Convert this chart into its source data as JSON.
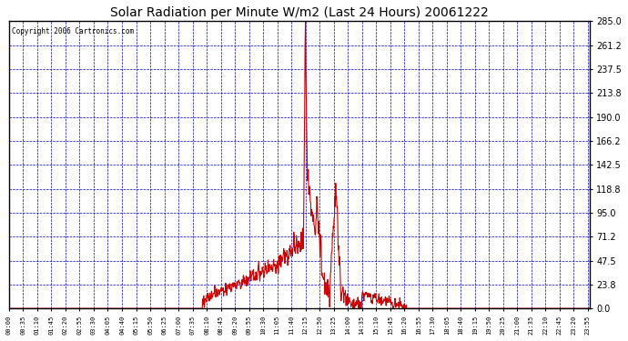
{
  "title": "Solar Radiation per Minute W/m2 (Last 24 Hours) 20061222",
  "copyright": "Copyright 2006 Cartronics.com",
  "bg_color": "#ffffff",
  "plot_bg_color": "#ffffff",
  "line_color": "#cc0000",
  "grid_color": "#0000cc",
  "text_color": "#000000",
  "title_color": "#000000",
  "border_color": "#000000",
  "ylim": [
    0.0,
    285.0
  ],
  "yticks": [
    0.0,
    23.8,
    47.5,
    71.2,
    95.0,
    118.8,
    142.5,
    166.2,
    190.0,
    213.8,
    237.5,
    261.2,
    285.0
  ],
  "n_points": 1440,
  "tick_interval": 35,
  "figwidth": 6.9,
  "figheight": 3.75,
  "dpi": 100
}
